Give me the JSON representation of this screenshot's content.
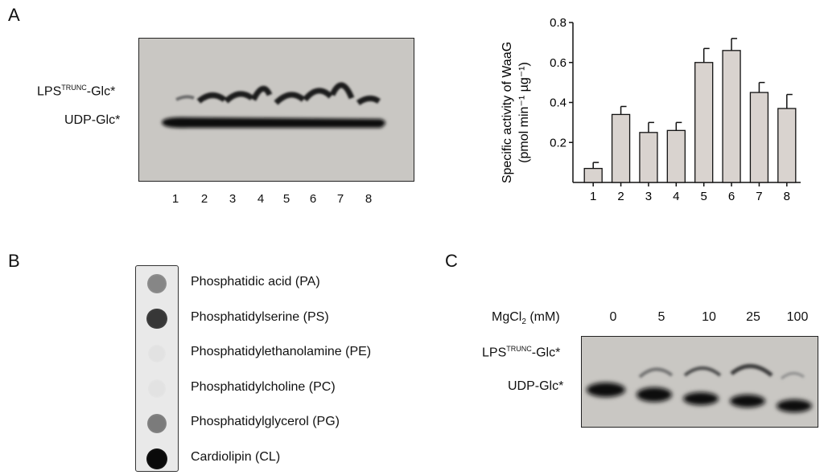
{
  "panels": {
    "a": "A",
    "b": "B",
    "c": "C"
  },
  "panel_a": {
    "band_lps": {
      "main": "LPS",
      "sup": "TRUNC",
      "tail": "-Glc*"
    },
    "band_udp": "UDP-Glc*",
    "lanes": [
      "1",
      "2",
      "3",
      "4",
      "5",
      "6",
      "7",
      "8"
    ]
  },
  "panel_b": {
    "lipids": [
      {
        "label": "Phosphatidic acid (PA)",
        "intensity": 0.45
      },
      {
        "label": "Phosphatidylserine (PS)",
        "intensity": 0.8
      },
      {
        "label": "Phosphatidylethanolamine (PE)",
        "intensity": 0.04
      },
      {
        "label": "Phosphatidylcholine (PC)",
        "intensity": 0.04
      },
      {
        "label": "Phosphatidylglycerol (PG)",
        "intensity": 0.5
      },
      {
        "label": "Cardiolipin (CL)",
        "intensity": 1.0
      }
    ]
  },
  "panel_c": {
    "mgcl2_label": {
      "main": "MgCl",
      "sub": "2",
      "tail": " (mM)"
    },
    "concentrations": [
      "0",
      "5",
      "10",
      "25",
      "100"
    ],
    "band_lps": {
      "main": "LPS",
      "sup": "TRUNC",
      "tail": "-Glc*"
    },
    "band_udp": "UDP-Glc*"
  },
  "chart_data": {
    "type": "bar",
    "title": "",
    "xlabel": "",
    "ylabel_line1": "Specific activity of WaaG",
    "ylabel_line2": "(pmol min⁻¹ µg⁻¹)",
    "categories": [
      "1",
      "2",
      "3",
      "4",
      "5",
      "6",
      "7",
      "8"
    ],
    "values": [
      0.07,
      0.34,
      0.25,
      0.26,
      0.6,
      0.66,
      0.45,
      0.37
    ],
    "errors": [
      0.03,
      0.04,
      0.05,
      0.04,
      0.07,
      0.06,
      0.05,
      0.07
    ],
    "ylim": [
      0,
      0.8
    ],
    "yticks": [
      0.2,
      0.4,
      0.6,
      0.8
    ],
    "bar_color": "#d9d3cf",
    "grid": false,
    "legend": "none"
  }
}
